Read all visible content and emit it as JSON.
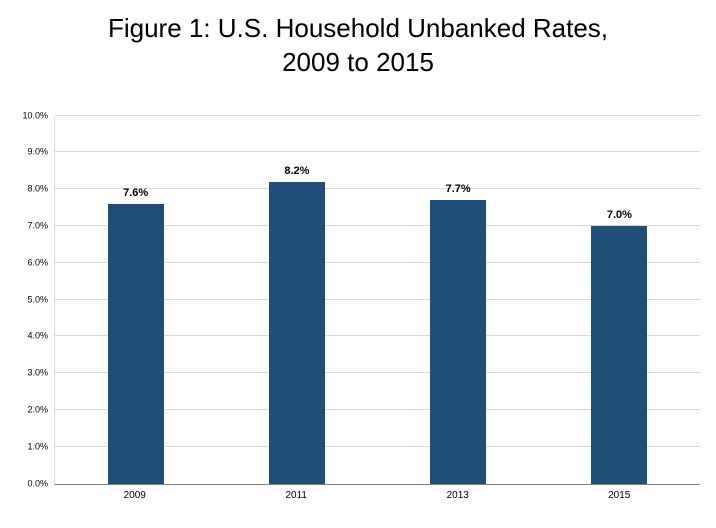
{
  "title": {
    "line1": "Figure 1: U.S. Household Unbanked Rates,",
    "line2": "2009 to 2015"
  },
  "chart_data": {
    "type": "bar",
    "title": "Figure 1: U.S. Household Unbanked Rates, 2009 to 2015",
    "categories": [
      "2009",
      "2011",
      "2013",
      "2015"
    ],
    "values": [
      7.6,
      8.2,
      7.7,
      7.0
    ],
    "value_labels": [
      "7.6%",
      "8.2%",
      "7.7%",
      "7.0%"
    ],
    "xlabel": "",
    "ylabel": "",
    "ylim": [
      0,
      10
    ],
    "y_ticks": [
      "0.0%",
      "1.0%",
      "2.0%",
      "3.0%",
      "4.0%",
      "5.0%",
      "6.0%",
      "7.0%",
      "8.0%",
      "9.0%",
      "10.0%"
    ],
    "grid": "horizontal",
    "legend": "none",
    "bar_color": "#1F4E79",
    "gridline_color": "#D9D9D9",
    "axis_color": "#808080"
  }
}
